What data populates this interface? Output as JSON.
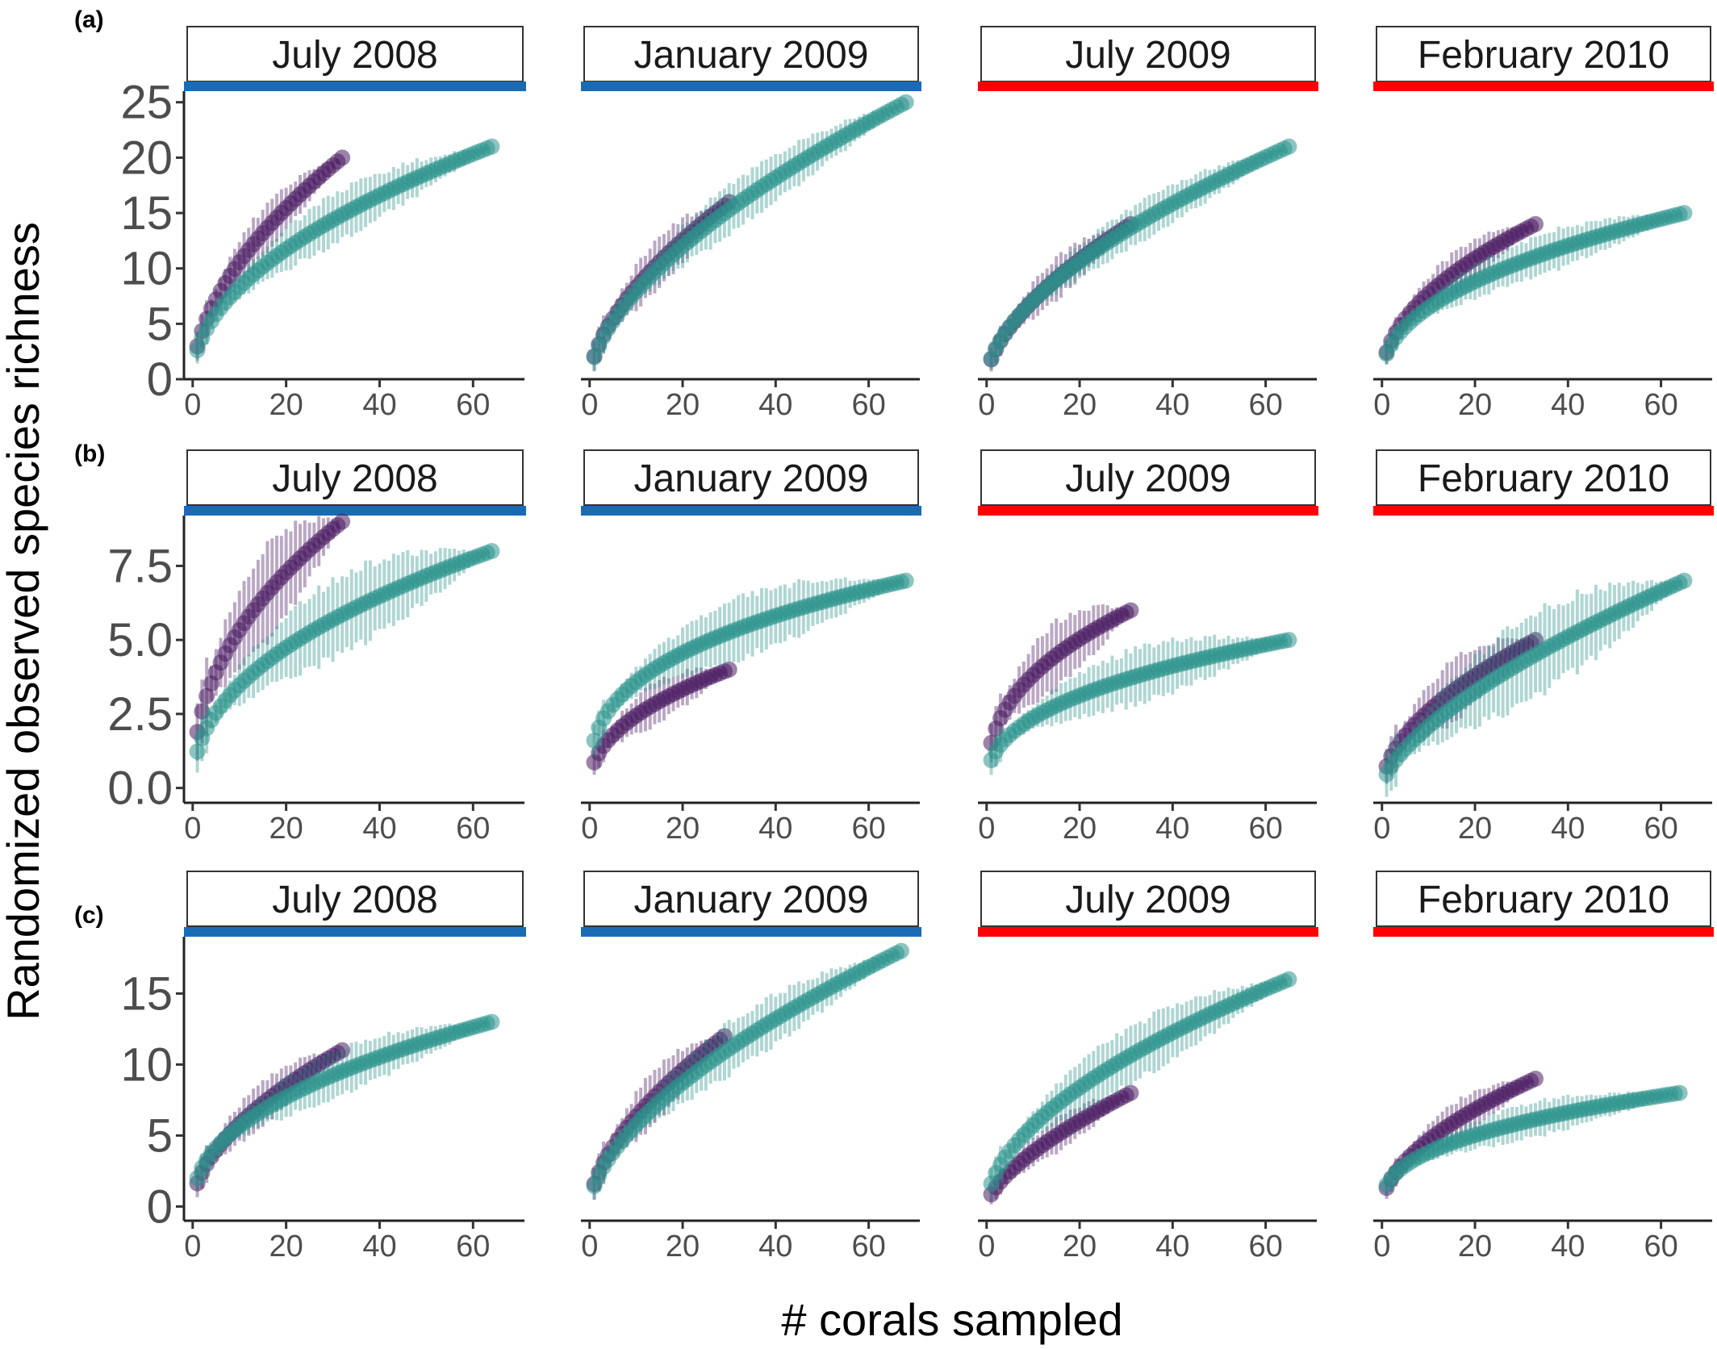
{
  "figure": {
    "ylabel": "Randomized observed species richness",
    "xlabel": "# corals sampled"
  },
  "colors": {
    "purple": "#4b1b63",
    "teal": "#2c948c",
    "winter_bar": "#1a6bb5",
    "summer_bar": "#ff0000"
  },
  "chart_data": [
    {
      "type": "scatter",
      "row_label": "(a)",
      "ylim": [
        0,
        26
      ],
      "yticks": [
        "0",
        "5",
        "10",
        "15",
        "20",
        "25"
      ],
      "ytick_values": [
        0,
        5,
        10,
        15,
        20,
        25
      ],
      "xlim": [
        -1,
        71
      ],
      "xticks": [
        "0",
        "20",
        "40",
        "60"
      ],
      "xtick_values": [
        0,
        20,
        40,
        60
      ],
      "panels": [
        {
          "title": "July 2008",
          "season_bar": "winter",
          "series": [
            {
              "color": "purple",
              "n": 32,
              "end": 20,
              "k": 0.55,
              "err": 2.2
            },
            {
              "color": "teal",
              "n": 64,
              "end": 21,
              "k": 0.5,
              "err": 2.2
            }
          ]
        },
        {
          "title": "January 2009",
          "season_bar": "winter",
          "series": [
            {
              "color": "purple",
              "n": 30,
              "end": 16,
              "k": 0.6,
              "err": 2.2
            },
            {
              "color": "teal",
              "n": 68,
              "end": 25,
              "k": 0.6,
              "err": 2.2
            }
          ]
        },
        {
          "title": "July 2009",
          "season_bar": "summer",
          "series": [
            {
              "color": "purple",
              "n": 31,
              "end": 14,
              "k": 0.6,
              "err": 1.8
            },
            {
              "color": "teal",
              "n": 65,
              "end": 21,
              "k": 0.58,
              "err": 1.8
            }
          ]
        },
        {
          "title": "February 2010",
          "season_bar": "summer",
          "series": [
            {
              "color": "purple",
              "n": 33,
              "end": 14,
              "k": 0.5,
              "err": 1.8
            },
            {
              "color": "teal",
              "n": 65,
              "end": 15,
              "k": 0.45,
              "err": 1.8
            }
          ]
        }
      ]
    },
    {
      "type": "scatter",
      "row_label": "(b)",
      "ylim": [
        -0.5,
        9.2
      ],
      "yticks": [
        "0.0",
        "2.5",
        "5.0",
        "7.5"
      ],
      "ytick_values": [
        0,
        2.5,
        5,
        7.5
      ],
      "xlim": [
        -1,
        71
      ],
      "xticks": [
        "0",
        "20",
        "40",
        "60"
      ],
      "xtick_values": [
        0,
        20,
        40,
        60
      ],
      "panels": [
        {
          "title": "July 2008",
          "season_bar": "winter",
          "series": [
            {
              "color": "purple",
              "n": 32,
              "end": 9,
              "k": 0.45,
              "err": 1.6
            },
            {
              "color": "teal",
              "n": 64,
              "end": 8,
              "k": 0.45,
              "err": 1.3
            }
          ]
        },
        {
          "title": "January 2009",
          "season_bar": "winter",
          "series": [
            {
              "color": "purple",
              "n": 30,
              "end": 4,
              "k": 0.45,
              "err": 0.7
            },
            {
              "color": "teal",
              "n": 68,
              "end": 7,
              "k": 0.35,
              "err": 1.0
            }
          ]
        },
        {
          "title": "July 2009",
          "season_bar": "summer",
          "series": [
            {
              "color": "purple",
              "n": 31,
              "end": 6,
              "k": 0.4,
              "err": 1.1
            },
            {
              "color": "teal",
              "n": 65,
              "end": 5,
              "k": 0.4,
              "err": 0.9
            }
          ]
        },
        {
          "title": "February 2010",
          "season_bar": "summer",
          "series": [
            {
              "color": "purple",
              "n": 33,
              "end": 5,
              "k": 0.55,
              "err": 1.0
            },
            {
              "color": "teal",
              "n": 65,
              "end": 7,
              "k": 0.65,
              "err": 1.4
            }
          ]
        }
      ]
    },
    {
      "type": "scatter",
      "row_label": "(c)",
      "ylim": [
        -1,
        19
      ],
      "yticks": [
        "0",
        "5",
        "10",
        "15"
      ],
      "ytick_values": [
        0,
        5,
        10,
        15
      ],
      "xlim": [
        -1,
        71
      ],
      "xticks": [
        "0",
        "20",
        "40",
        "60"
      ],
      "xtick_values": [
        0,
        20,
        40,
        60
      ],
      "panels": [
        {
          "title": "July 2008",
          "season_bar": "winter",
          "series": [
            {
              "color": "purple",
              "n": 32,
              "end": 11,
              "k": 0.55,
              "err": 1.6
            },
            {
              "color": "teal",
              "n": 64,
              "end": 13,
              "k": 0.45,
              "err": 1.6
            }
          ]
        },
        {
          "title": "January 2009",
          "season_bar": "winter",
          "series": [
            {
              "color": "purple",
              "n": 29,
              "end": 12,
              "k": 0.6,
              "err": 1.8
            },
            {
              "color": "teal",
              "n": 67,
              "end": 18,
              "k": 0.6,
              "err": 1.8
            }
          ]
        },
        {
          "title": "July 2009",
          "season_bar": "summer",
          "series": [
            {
              "color": "purple",
              "n": 31,
              "end": 8,
              "k": 0.65,
              "err": 1.2
            },
            {
              "color": "teal",
              "n": 65,
              "end": 16,
              "k": 0.55,
              "err": 2.0
            }
          ]
        },
        {
          "title": "February 2010",
          "season_bar": "summer",
          "series": [
            {
              "color": "purple",
              "n": 33,
              "end": 9,
              "k": 0.55,
              "err": 1.3
            },
            {
              "color": "teal",
              "n": 64,
              "end": 8,
              "k": 0.4,
              "err": 1.2
            }
          ]
        }
      ]
    }
  ]
}
